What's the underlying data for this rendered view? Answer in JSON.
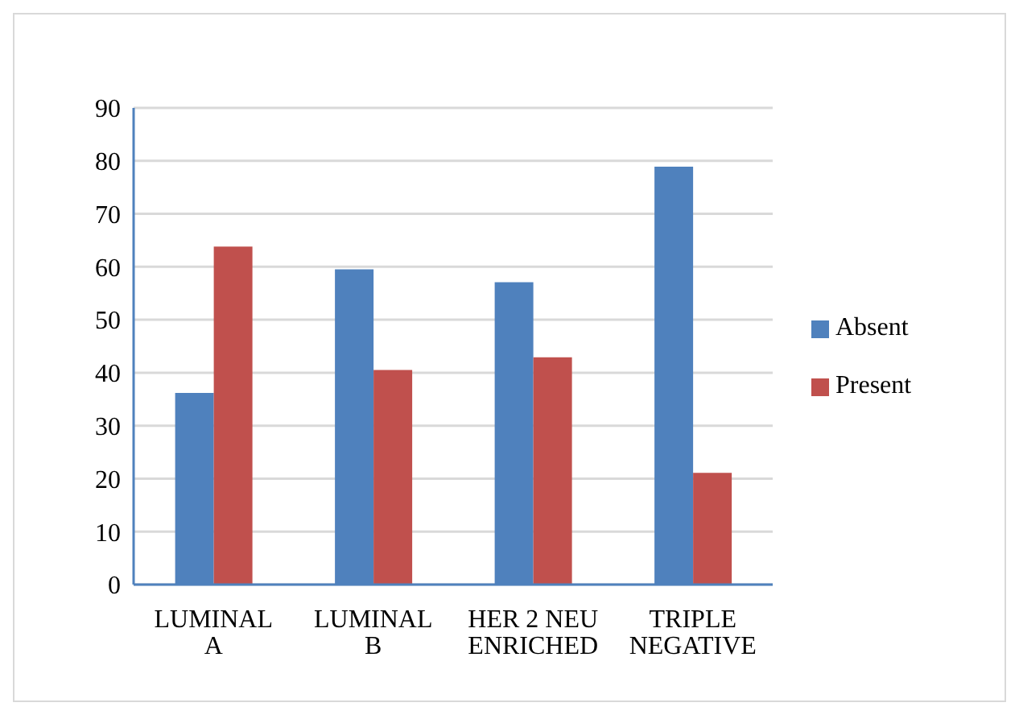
{
  "chart_data": {
    "type": "bar",
    "categories": [
      "LUMINAL\nA",
      "LUMINAL\nB",
      "HER 2 NEU\nENRICHED",
      "TRIPLE\nNEGATIVE"
    ],
    "series": [
      {
        "name": "Absent",
        "color": "#4f81bd",
        "values": [
          36.2,
          59.5,
          57.1,
          78.9
        ]
      },
      {
        "name": "Present",
        "color": "#c0504d",
        "values": [
          63.8,
          40.5,
          42.9,
          21.1
        ]
      }
    ],
    "ylim": [
      0,
      90
    ],
    "yticks": [
      0,
      10,
      20,
      30,
      40,
      50,
      60,
      70,
      80,
      90
    ],
    "grid": "y",
    "legend": "right"
  }
}
